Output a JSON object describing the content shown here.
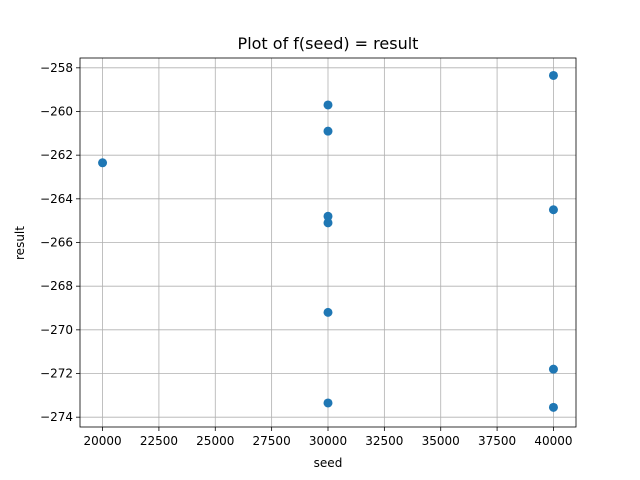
{
  "chart_data": {
    "type": "scatter",
    "title": "Plot of f(seed) = result",
    "xlabel": "seed",
    "ylabel": "result",
    "xlim": [
      19000,
      41000
    ],
    "ylim": [
      -274.45,
      -257.55
    ],
    "xticks": [
      20000,
      22500,
      25000,
      27500,
      30000,
      32500,
      35000,
      37500,
      40000
    ],
    "yticks": [
      -258,
      -260,
      -262,
      -264,
      -266,
      -268,
      -270,
      -272,
      -274
    ],
    "grid": true,
    "color": "#1f77b4",
    "points": [
      {
        "x": 20000,
        "y": -262.35
      },
      {
        "x": 30000,
        "y": -259.7
      },
      {
        "x": 30000,
        "y": -260.9
      },
      {
        "x": 30000,
        "y": -264.8
      },
      {
        "x": 30000,
        "y": -265.1
      },
      {
        "x": 30000,
        "y": -269.2
      },
      {
        "x": 30000,
        "y": -273.35
      },
      {
        "x": 40000,
        "y": -258.35
      },
      {
        "x": 40000,
        "y": -264.5
      },
      {
        "x": 40000,
        "y": -271.8
      },
      {
        "x": 40000,
        "y": -273.55
      }
    ]
  }
}
